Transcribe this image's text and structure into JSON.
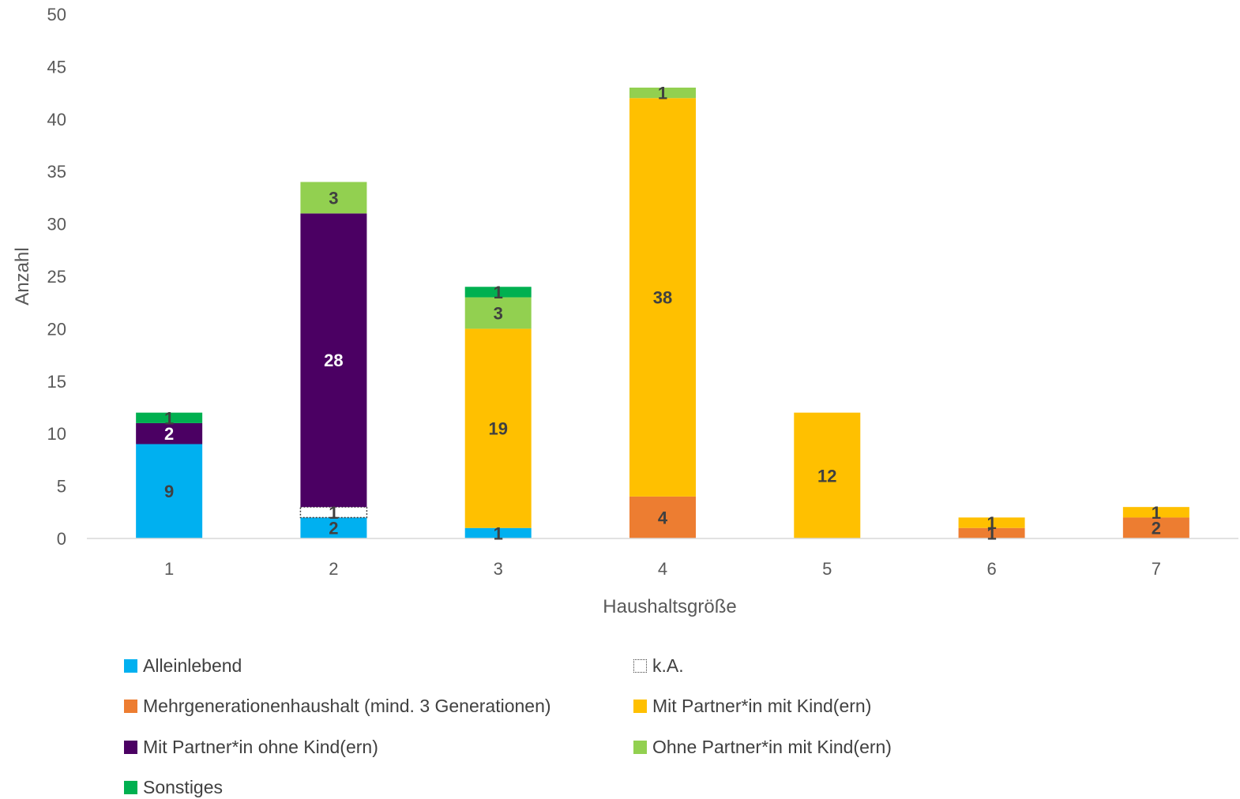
{
  "chart_data": {
    "type": "bar",
    "stacked": true,
    "xlabel": "Haushaltsgröße",
    "ylabel": "Anzahl",
    "ylim": [
      0,
      50
    ],
    "yticks": [
      0,
      5,
      10,
      15,
      20,
      25,
      30,
      35,
      40,
      45,
      50
    ],
    "categories": [
      "1",
      "2",
      "3",
      "4",
      "5",
      "6",
      "7"
    ],
    "grid": false,
    "legend_position": "bottom",
    "series": [
      {
        "name": "Alleinlebend",
        "color": "#00B0F0",
        "label_color": "#404040",
        "values": [
          9,
          2,
          1,
          0,
          0,
          0,
          0
        ]
      },
      {
        "name": "k.A.",
        "color": "#FFFFFF",
        "dotted": true,
        "label_color": "#404040",
        "values": [
          0,
          1,
          0,
          0,
          0,
          0,
          0
        ]
      },
      {
        "name": "Mehrgenerationenhaushalt (mind. 3 Generationen)",
        "color": "#ED7D31",
        "label_color": "#404040",
        "values": [
          0,
          0,
          0,
          4,
          0,
          1,
          2
        ]
      },
      {
        "name": "Mit Partner*in mit Kind(ern)",
        "color": "#FFC000",
        "label_color": "#404040",
        "values": [
          0,
          0,
          19,
          38,
          12,
          1,
          1
        ]
      },
      {
        "name": "Mit Partner*in ohne Kind(ern)",
        "color": "#4B0063",
        "label_color": "#FFFFFF",
        "values": [
          2,
          28,
          0,
          0,
          0,
          0,
          0
        ]
      },
      {
        "name": "Ohne Partner*in mit Kind(ern)",
        "color": "#92D050",
        "label_color": "#404040",
        "values": [
          0,
          3,
          3,
          1,
          0,
          0,
          0
        ]
      },
      {
        "name": "Sonstiges",
        "color": "#00B050",
        "label_color": "#404040",
        "values": [
          1,
          0,
          1,
          0,
          0,
          0,
          0
        ]
      }
    ]
  }
}
